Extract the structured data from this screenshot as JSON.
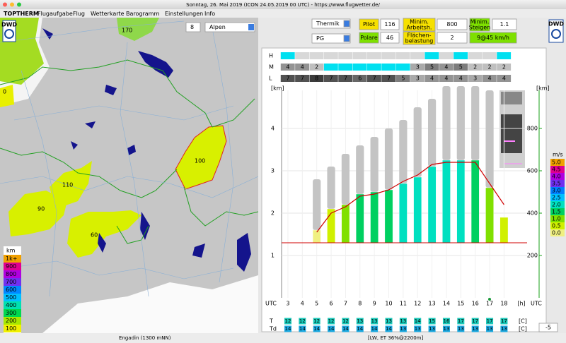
{
  "window_title": "Sonntag, 26. Mai 2019 (ICON 24.05.2019 00 UTC) - https://www.flugwetter.de/",
  "menu": [
    "TOPTHERM",
    "Flugaufgabe",
    "Flug",
    "Wetterkarte",
    "Barogramm",
    "Einstellungen",
    "Info"
  ],
  "map": {
    "level": "8",
    "region": "Alpen",
    "labels": [
      "170",
      "0",
      "100",
      "110",
      "90",
      "60"
    ],
    "legend": {
      "title": "km",
      "items": [
        {
          "label": "1k+",
          "color": "#f0a000"
        },
        {
          "label": "900",
          "color": "#e00090"
        },
        {
          "label": "800",
          "color": "#b000e0"
        },
        {
          "label": "700",
          "color": "#7030f0"
        },
        {
          "label": "600",
          "color": "#0088ff"
        },
        {
          "label": "500",
          "color": "#00c0ff"
        },
        {
          "label": "400",
          "color": "#00e0b0"
        },
        {
          "label": "300",
          "color": "#00d850"
        },
        {
          "label": "200",
          "color": "#a8e800"
        },
        {
          "label": "100",
          "color": "#f0f000"
        }
      ]
    }
  },
  "controls": {
    "mode": "Thermik",
    "pilot_label": "Pilot",
    "pilot": "116",
    "min_height_label": [
      "Minim.",
      "Arbeitsh."
    ],
    "min_height": "800",
    "min_climb_label": [
      "Minim.",
      "Steigen"
    ],
    "min_climb": "1.1",
    "glider": "PG",
    "polar_label": "Polare",
    "polar": "46",
    "wing_loading_label": [
      "Flächen-",
      "belastung"
    ],
    "wing_loading": "2",
    "speed": "9@45 km/h"
  },
  "cloud_rows": {
    "H": {
      "label": "H",
      "colors": [
        "#00e0f0",
        "#d8d8d8",
        "#d8d8d8",
        "#d8d8d8",
        "#d8d8d8",
        "#d8d8d8",
        "#d8d8d8",
        "#d8d8d8",
        "#d8d8d8",
        "#d8d8d8",
        "#00e0f0",
        "#d8d8d8",
        "#00e0f0",
        "#d8d8d8",
        "#d8d8d8",
        "#00e0f0"
      ]
    },
    "M": {
      "label": "M",
      "values": [
        4,
        4,
        2,
        null,
        null,
        null,
        null,
        null,
        null,
        3,
        5,
        4,
        5,
        2,
        2,
        2
      ]
    },
    "L": {
      "label": "L",
      "values": [
        7,
        7,
        8,
        7,
        7,
        6,
        7,
        7,
        5,
        3,
        4,
        4,
        4,
        3,
        4,
        4
      ]
    }
  },
  "chart_data": {
    "type": "bar",
    "y_label": "[km]",
    "y2_label": "[km]",
    "x_label": "UTC",
    "x_unit": "[h]",
    "x": [
      3,
      4,
      5,
      6,
      7,
      8,
      9,
      10,
      11,
      12,
      13,
      14,
      15,
      16,
      17,
      18
    ],
    "xlim": [
      2.56,
      19.6
    ],
    "xticks": [
      3,
      4,
      5,
      6,
      7,
      8,
      9,
      10,
      11,
      12,
      13,
      14,
      15,
      16,
      17,
      18
    ],
    "ylim": [
      0,
      5
    ],
    "yticks": [
      1,
      2,
      3,
      4
    ],
    "y2lim": [
      0,
      1000
    ],
    "y2ticks": [
      200,
      400,
      600,
      800
    ],
    "grid": true,
    "ground": 1.3,
    "series": [
      {
        "color": "#2bd69a",
        "values": [
          null,
          null,
          1.6,
          2.1,
          2.2,
          2.45,
          2.5,
          2.55,
          2.7,
          2.85,
          3.1,
          3.25,
          3.25,
          3.25,
          2.6,
          1.9
        ]
      },
      {
        "color": "#c4c4c4",
        "values": [
          null,
          null,
          2.8,
          3.1,
          3.4,
          3.6,
          3.8,
          4.0,
          4.2,
          4.5,
          4.7,
          5.0,
          5.0,
          5.0,
          4.9,
          null
        ]
      },
      {
        "color": "#d00000",
        "style": "line",
        "values": [
          null,
          null,
          1.55,
          2.0,
          2.15,
          2.4,
          2.45,
          2.55,
          2.75,
          2.9,
          3.15,
          3.2,
          3.2,
          3.2,
          2.7,
          2.2
        ]
      }
    ],
    "strength": [
      null,
      null,
      0,
      0.5,
      1.0,
      1.5,
      1.5,
      1.5,
      2.0,
      2.0,
      2.0,
      2.0,
      2.0,
      1.5,
      1.0,
      0.5
    ],
    "strength_legend": {
      "title": "m/s",
      "items": [
        {
          "value": 5,
          "label": "5.0",
          "color": "#f0a000"
        },
        {
          "value": 4.5,
          "label": "4.5",
          "color": "#e00090"
        },
        {
          "value": 4,
          "label": "4.0",
          "color": "#b000e0"
        },
        {
          "value": 3.5,
          "label": "3.5",
          "color": "#7030f0"
        },
        {
          "value": 3,
          "label": "3.0",
          "color": "#0080ff"
        },
        {
          "value": 2.5,
          "label": "2.5",
          "color": "#00c0ff"
        },
        {
          "value": 2,
          "label": "2.0",
          "color": "#00e0c0"
        },
        {
          "value": 1.5,
          "label": "1.5",
          "color": "#00d060"
        },
        {
          "value": 1,
          "label": "1.0",
          "color": "#80e000"
        },
        {
          "value": 0.5,
          "label": "0.5",
          "color": "#d0f000"
        },
        {
          "value": 0,
          "label": "0.0",
          "color": "#f0f080"
        }
      ]
    }
  },
  "temperature": {
    "T_label": "T",
    "Td_label": "Td",
    "unit": "[C]",
    "T": [
      12,
      12,
      12,
      12,
      12,
      13,
      13,
      13,
      13,
      14,
      15,
      16,
      17,
      17,
      17,
      17
    ],
    "Td": [
      14,
      14,
      14,
      14,
      14,
      14,
      14,
      14,
      13,
      13,
      13,
      13,
      13,
      13,
      13,
      13
    ],
    "offset": "-5"
  },
  "status": {
    "location": "Engadin (1300 mNN)",
    "info": "[LW, ET  36%@2200m]"
  }
}
